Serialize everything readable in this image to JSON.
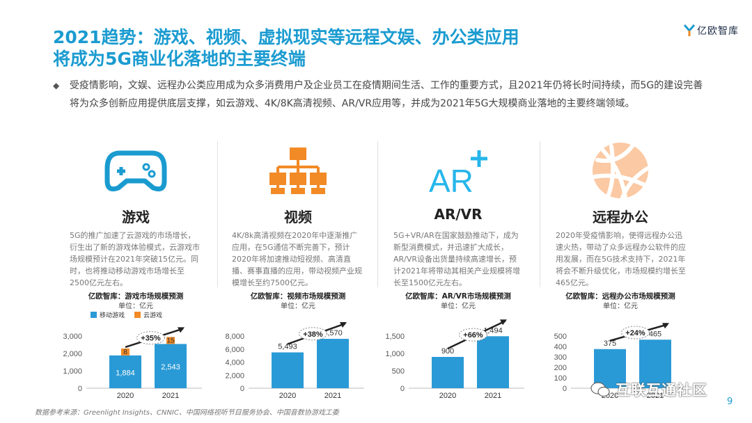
{
  "title": {
    "line1": "2021趋势：游戏、视频、虚拟现实等远程文娱、办公类应用",
    "line2": "将成为5G商业化落地的主要终端"
  },
  "logo": {
    "text": "亿欧智库"
  },
  "intro": {
    "bullet": "◆",
    "text": "受疫情影响，文娱、远程办公类应用成为众多消费用户及企业员工在疫情期间生活、工作的重要方式，且2021年仍将长时间持续，而5G的建设完善将为众多创新应用提供底层支撑，如云游戏、4K/8K高清视频、AR/VR应用等，并成为2021年5G大规模商业落地的主要终端领域。"
  },
  "colors": {
    "accent": "#1a9bd0",
    "orange": "#f28a26",
    "bar": "#2a9ad6"
  },
  "columns": [
    {
      "icon": "gamepad-icon",
      "title": "游戏",
      "desc": "5G的推广加速了云游戏的市场增长，衍生出了新的游戏体验模式，云游戏市场规模预计在2021年突破15亿元。同时，也将推动移动游戏市场增长至2500亿元左右。",
      "chart_title": "亿欧智库：游戏市场规模预测",
      "unit": "单位：亿元",
      "legend": [
        "移动游戏",
        "云游戏"
      ],
      "growth": "+35%"
    },
    {
      "icon": "hierarchy-icon",
      "title": "视频",
      "desc": "4K/8k高清视频在2020年中逐渐推广应用，在5G通信不断完善下，预计2020年将加速推动短视频、高清直播、赛事直播的应用，带动视频产业规模增长至约7500亿元。",
      "chart_title": "亿欧智库：视频市场规模预测",
      "unit": "单位：亿元",
      "growth": "+38%"
    },
    {
      "icon": "ar-plus-icon",
      "title": "AR/VR",
      "desc": "5G+VR/AR在国家鼓励推动下，成为新型消费模式，并迅速扩大成长，AR/VR设备出货量持续高速增长，预计2021年将带动其相关产业规模将增长至1500亿元左右。",
      "chart_title": "亿欧智库：AR/VR市场规模预测",
      "unit": "单位：亿元",
      "growth": "+66%"
    },
    {
      "icon": "network-globe-icon",
      "title": "远程办公",
      "desc": "2020年受疫情影响，使得远程办公迅速火热，带动了众多远程办公软件的应用发展，而在5G技术支持下，2021年将会不断升级优化，市场规模约增长至465亿元。",
      "chart_title": "亿欧智库：远程办公市场规模预测",
      "unit": "单位：亿元",
      "growth": "+24%"
    }
  ],
  "chart_data": [
    {
      "type": "bar",
      "title": "亿欧智库：游戏市场规模预测",
      "unit": "单位：亿元",
      "categories": [
        "2020",
        "2021"
      ],
      "series": [
        {
          "name": "移动游戏",
          "values": [
            1884,
            2543
          ],
          "color": "#2a9ad6"
        },
        {
          "name": "云游戏",
          "values": [
            8,
            15
          ],
          "color": "#f28a26"
        }
      ],
      "yticks": [
        "0",
        "1,000",
        "2,000",
        "3,000"
      ],
      "ylim": [
        0,
        3000
      ],
      "growth": "+35%"
    },
    {
      "type": "bar",
      "title": "亿欧智库：视频市场规模预测",
      "unit": "单位：亿元",
      "categories": [
        "2020",
        "2021"
      ],
      "series": [
        {
          "values": [
            5493,
            7570
          ],
          "color": "#2a9ad6"
        }
      ],
      "yticks": [
        "0",
        "2,000",
        "4,000",
        "6,000",
        "8,000"
      ],
      "ylim": [
        0,
        8000
      ],
      "growth": "+38%"
    },
    {
      "type": "bar",
      "title": "亿欧智库：AR/VR市场规模预测",
      "unit": "单位：亿元",
      "categories": [
        "2020",
        "2021"
      ],
      "series": [
        {
          "values": [
            900,
            1494
          ],
          "color": "#2a9ad6"
        }
      ],
      "yticks": [
        "0",
        "500",
        "1,000",
        "1,500"
      ],
      "ylim": [
        0,
        1500
      ],
      "growth": "+66%"
    },
    {
      "type": "bar",
      "title": "亿欧智库：远程办公市场规模预测",
      "unit": "单位：亿元",
      "categories": [
        "2020",
        "2021"
      ],
      "series": [
        {
          "values": [
            375,
            465
          ],
          "color": "#2a9ad6"
        }
      ],
      "yticks": [
        "0",
        "100",
        "200",
        "300",
        "400",
        "500"
      ],
      "ylim": [
        0,
        500
      ],
      "growth": "+24%"
    }
  ],
  "source": "数据参考来源：Greenlight Insights、CNNIC、中国网络视听节目服务协会、中国音数协游戏工委",
  "watermark": "互联互通社区",
  "page_number": "9"
}
